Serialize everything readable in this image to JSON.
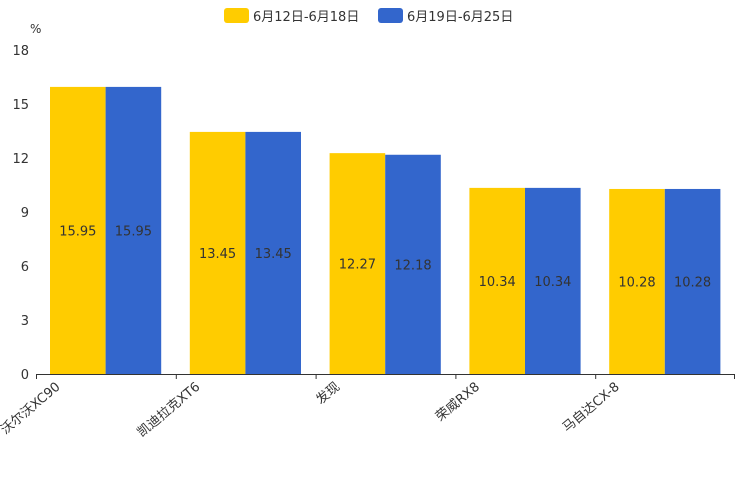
{
  "chart_data": {
    "type": "bar",
    "title": "",
    "xlabel": "",
    "ylabel": "%",
    "ylim": [
      0,
      18
    ],
    "yticks": [
      0,
      3,
      6,
      9,
      12,
      15,
      18
    ],
    "grid": false,
    "legend_position": "top-center",
    "categories": [
      "沃尔沃XC90",
      "凯迪拉克XT6",
      "发现",
      "荣威RX8",
      "马自达CX-8"
    ],
    "series": [
      {
        "name": "6月12日-6月18日",
        "color": "#ffcc00",
        "values": [
          15.95,
          13.45,
          12.27,
          10.34,
          10.28
        ]
      },
      {
        "name": "6月19日-6月25日",
        "color": "#3366cc",
        "values": [
          15.95,
          13.45,
          12.18,
          10.34,
          10.28
        ]
      }
    ]
  }
}
